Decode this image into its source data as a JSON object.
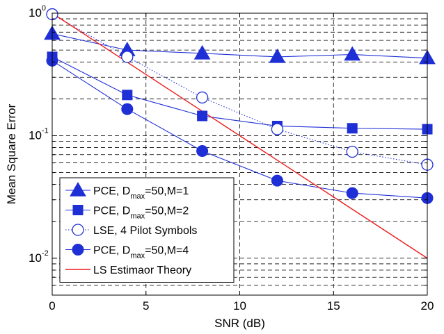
{
  "chart_data": {
    "type": "line",
    "title": "",
    "xlabel": "SNR (dB)",
    "ylabel": "Mean Square Error",
    "xlim": [
      0,
      20
    ],
    "ylim": [
      0.005,
      1
    ],
    "yscale": "log",
    "grid": true,
    "legend_position": "bottom-left",
    "x_ticks": [
      "0",
      "5",
      "10",
      "15",
      "20"
    ],
    "y_ticks": [
      {
        "base": "10",
        "exp": "0"
      },
      {
        "base": "10",
        "exp": "-1"
      },
      {
        "base": "10",
        "exp": "-2"
      }
    ],
    "series": [
      {
        "name": "PCE, D_max=50,M=1",
        "label_parts": [
          "PCE, D",
          "max",
          "=50,M=1"
        ],
        "marker": "triangle-filled",
        "line": "solid",
        "color": "#1f2fd6",
        "x": [
          0,
          4,
          8,
          12,
          16,
          20
        ],
        "y": [
          0.68,
          0.5,
          0.47,
          0.44,
          0.46,
          0.43
        ]
      },
      {
        "name": "PCE, D_max=50,M=2",
        "label_parts": [
          "PCE, D",
          "max",
          "=50,M=2"
        ],
        "marker": "square-filled",
        "line": "solid",
        "color": "#1f2fd6",
        "x": [
          0,
          4,
          8,
          12,
          16,
          20
        ],
        "y": [
          0.44,
          0.215,
          0.145,
          0.12,
          0.115,
          0.113
        ]
      },
      {
        "name": "LSE, 4 Pilot Symbols",
        "label_parts": [
          "LSE, 4 Pilot Symbols"
        ],
        "marker": "circle-open",
        "line": "dotted",
        "color": "#1f2fd6",
        "x": [
          0,
          4,
          8,
          12,
          16,
          20
        ],
        "y": [
          0.98,
          0.44,
          0.205,
          0.113,
          0.074,
          0.058
        ]
      },
      {
        "name": "PCE, D_max=50,M=4",
        "label_parts": [
          "PCE, D",
          "max",
          "=50,M=4"
        ],
        "marker": "circle-filled",
        "line": "solid",
        "color": "#1f2fd6",
        "x": [
          0,
          4,
          8,
          12,
          16,
          20
        ],
        "y": [
          0.41,
          0.165,
          0.075,
          0.043,
          0.034,
          0.031
        ]
      },
      {
        "name": "LS Estimaor Theory",
        "label_parts": [
          "LS Estimaor Theory"
        ],
        "marker": "none",
        "line": "solid",
        "color": "#ee1c1c",
        "x": [
          0,
          20
        ],
        "y": [
          1.0,
          0.01
        ]
      }
    ]
  }
}
